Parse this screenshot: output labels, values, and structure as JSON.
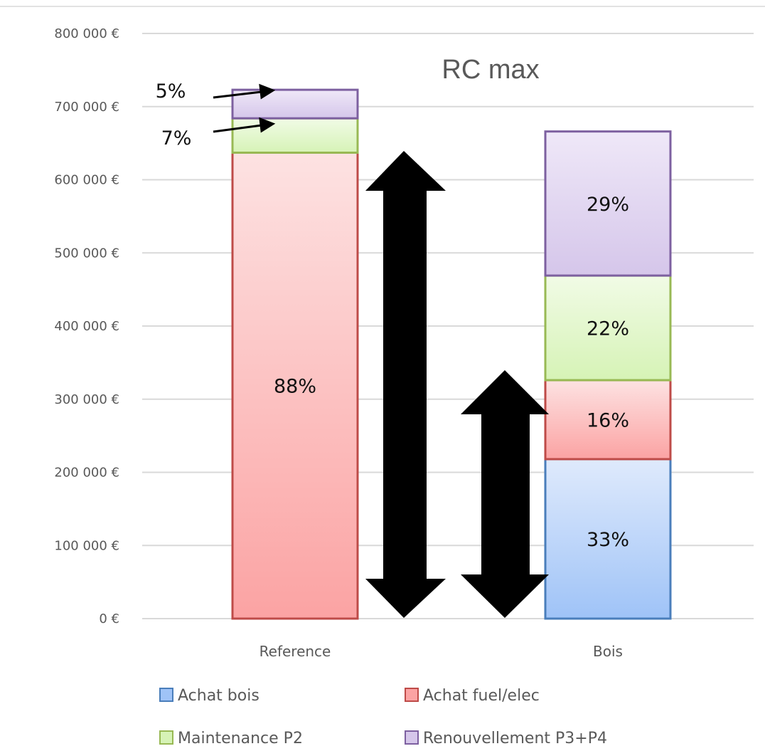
{
  "chart_data": {
    "type": "bar",
    "stacked": true,
    "title": "RC max",
    "categories": [
      "Reference",
      "Bois"
    ],
    "ylim": [
      0,
      800000
    ],
    "yticks": [
      0,
      100000,
      200000,
      300000,
      400000,
      500000,
      600000,
      700000,
      800000
    ],
    "ytick_labels": [
      "0 €",
      "100 000 €",
      "200 000 €",
      "300 000 €",
      "400 000 €",
      "500 000 €",
      "600 000 €",
      "700 000 €",
      "800 000 €"
    ],
    "grid": true,
    "legend_position": "bottom",
    "series": [
      {
        "name": "Achat bois",
        "values": [
          0,
          218000
        ],
        "color": "#9fc3f7",
        "border": "#4a7ebb",
        "labels": [
          "",
          "33%"
        ]
      },
      {
        "name": "Achat fuel/elec",
        "values": [
          637000,
          108000
        ],
        "color": "#fba3a3",
        "border": "#be4b48",
        "labels": [
          "88%",
          "16%"
        ]
      },
      {
        "name": "Maintenance P2",
        "values": [
          47000,
          143000
        ],
        "color": "#d6f3b6",
        "border": "#98b954",
        "labels": [
          "7%",
          "22%"
        ]
      },
      {
        "name": "Renouvellement P3+P4",
        "values": [
          39000,
          197000
        ],
        "color": "#d5c6ea",
        "border": "#7d60a0",
        "labels": [
          "5%",
          "29%"
        ]
      }
    ]
  }
}
